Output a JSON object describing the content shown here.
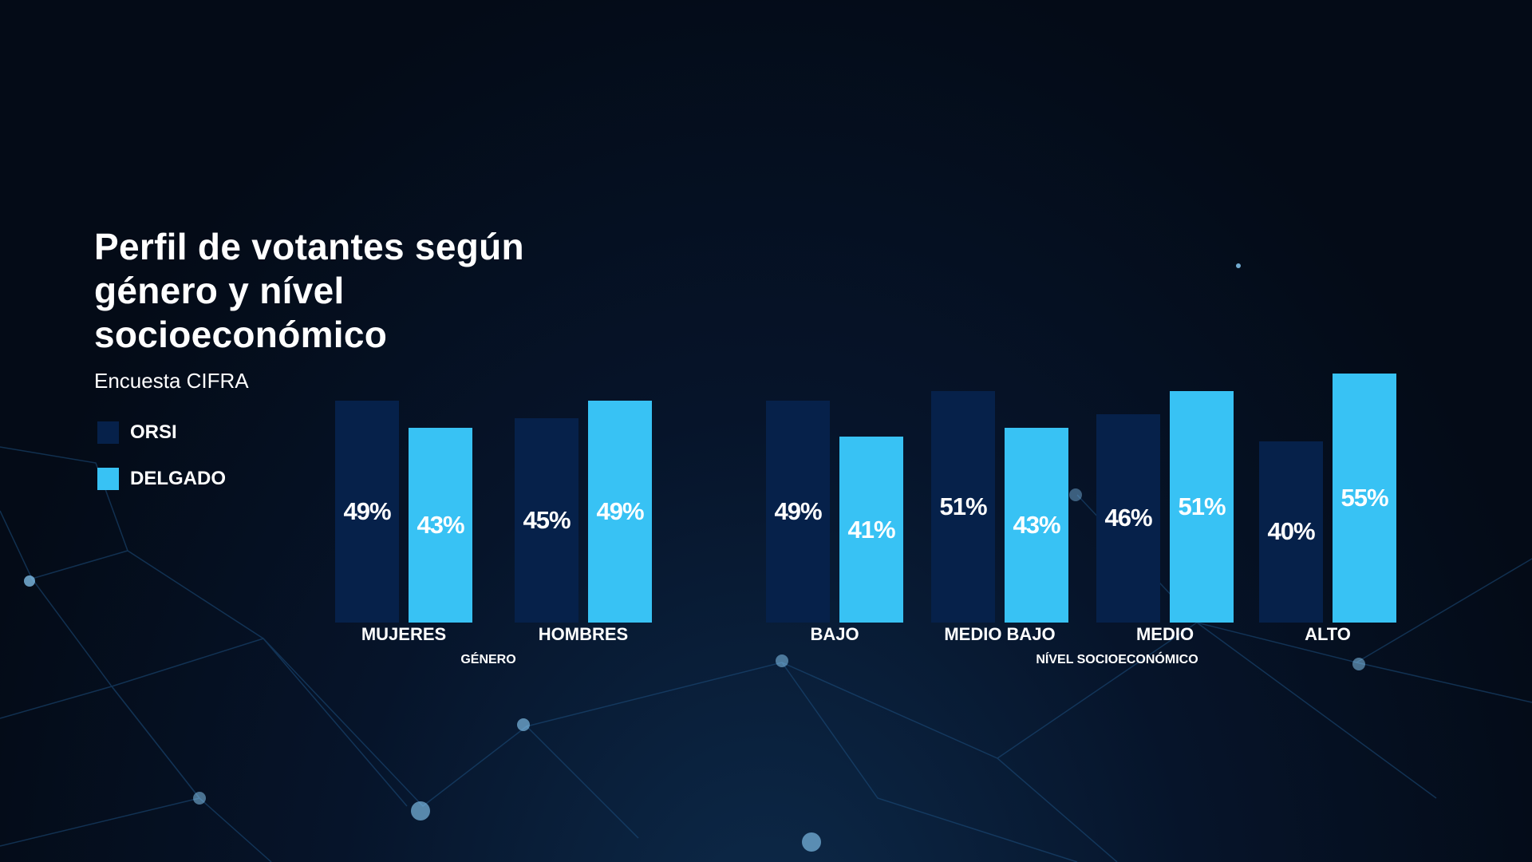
{
  "title": "Perfil de votantes según género y nível socioeconómico",
  "subtitle": "Encuesta CIFRA",
  "colors": {
    "orsi": "#06214a",
    "delgado": "#38c2f4"
  },
  "chart_data": {
    "type": "bar",
    "title": "Perfil de votantes según género y nível socioeconómico",
    "subtitle": "Encuesta CIFRA",
    "categories": [
      "MUJERES",
      "HOMBRES",
      "BAJO",
      "MEDIO BAJO",
      "MEDIO",
      "ALTO"
    ],
    "groups": [
      {
        "label": "GÉNERO",
        "categories": [
          "MUJERES",
          "HOMBRES"
        ]
      },
      {
        "label": "NÍVEL SOCIOECONÓMICO",
        "categories": [
          "BAJO",
          "MEDIO BAJO",
          "MEDIO",
          "ALTO"
        ]
      }
    ],
    "series": [
      {
        "name": "ORSI",
        "values": [
          49,
          45,
          49,
          51,
          46,
          40
        ],
        "labels": [
          "49%",
          "45%",
          "49%",
          "51%",
          "46%",
          "40%"
        ]
      },
      {
        "name": "DELGADO",
        "values": [
          43,
          49,
          41,
          43,
          51,
          55
        ],
        "labels": [
          "43%",
          "49%",
          "41%",
          "43%",
          "51%",
          "55%"
        ]
      }
    ],
    "legend": "left",
    "ylim": [
      0,
      55
    ],
    "grid": false
  }
}
